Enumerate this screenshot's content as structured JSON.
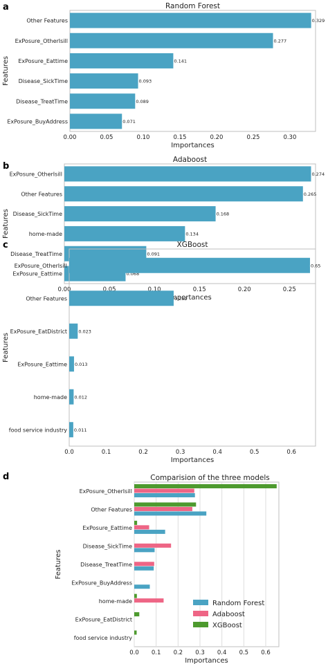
{
  "colors": {
    "random_forest": "#4aa3c3",
    "adaboost": "#ee6585",
    "xgboost": "#4d9a2e",
    "frame": "#bfbfbf",
    "grid": "#dddddd"
  },
  "chart_data": [
    {
      "panel": "a",
      "type": "bar",
      "orientation": "horizontal",
      "title": "Random Forest",
      "xlabel": "Importances",
      "ylabel": "Features",
      "categories": [
        "Other Features",
        "ExPosure_OtherIsill",
        "ExPosure_Eattime",
        "Disease_SickTime",
        "Disease_TreatTime",
        "ExPosure_BuyAddress"
      ],
      "values": [
        0.329,
        0.277,
        0.141,
        0.093,
        0.089,
        0.071
      ],
      "value_labels": [
        "0.329",
        "0.277",
        "0.141",
        "0.093",
        "0.089",
        "0.071"
      ],
      "xticks": [
        "0.00",
        "0.05",
        "0.10",
        "0.15",
        "0.20",
        "0.25",
        "0.30"
      ],
      "xlim": [
        0,
        0.335
      ],
      "grid": false
    },
    {
      "panel": "b",
      "type": "bar",
      "orientation": "horizontal",
      "title": "Adaboost",
      "xlabel": "Importances",
      "ylabel": "Features",
      "categories": [
        "ExPosure_OtherIsill",
        "Other Features",
        "Disease_SickTime",
        "home-made",
        "Disease_TreatTime",
        "ExPosure_Eattime"
      ],
      "values": [
        0.274,
        0.265,
        0.168,
        0.134,
        0.091,
        0.068
      ],
      "value_labels": [
        "0.274",
        "0.265",
        "0.168",
        "0.134",
        "0.091",
        "0.068"
      ],
      "xticks": [
        "0.00",
        "0.05",
        "0.10",
        "0.15",
        "0.20",
        "0.25"
      ],
      "xlim": [
        0,
        0.279
      ],
      "grid": false
    },
    {
      "panel": "c",
      "type": "bar",
      "orientation": "horizontal",
      "title": "XGBoost",
      "xlabel": "Importances",
      "ylabel": "Features",
      "categories": [
        "ExPosure_OtherIsill",
        "Other Features",
        "ExPosure_EatDistrict",
        "ExPosure_Eattime",
        "home-made",
        "food service industry"
      ],
      "values": [
        0.65,
        0.282,
        0.023,
        0.013,
        0.012,
        0.011
      ],
      "value_labels": [
        "0.65",
        "0.282",
        "0.023",
        "0.013",
        "0.012",
        "0.011"
      ],
      "xticks": [
        "0.0",
        "0.1",
        "0.2",
        "0.3",
        "0.4",
        "0.5",
        "0.6"
      ],
      "xlim": [
        0,
        0.665
      ],
      "grid": false
    },
    {
      "panel": "d",
      "type": "bar",
      "orientation": "horizontal",
      "title": "Comparision of the three models",
      "xlabel": "Importances",
      "ylabel": "Features",
      "categories": [
        "ExPosure_OtherIsill",
        "Other Features",
        "ExPosure_Eattime",
        "Disease_SickTime",
        "Disease_TreatTime",
        "ExPosure_BuyAddress",
        "home-made",
        "ExPosure_EatDistrict",
        "food service industry"
      ],
      "series": [
        {
          "name": "XGBoost",
          "values": [
            0.65,
            0.282,
            0.013,
            0,
            0,
            0,
            0.012,
            0.023,
            0.011
          ]
        },
        {
          "name": "Adaboost",
          "values": [
            0.274,
            0.265,
            0.068,
            0.168,
            0.091,
            0,
            0.134,
            0,
            0
          ]
        },
        {
          "name": "Random Forest",
          "values": [
            0.277,
            0.329,
            0.141,
            0.093,
            0.089,
            0.071,
            0,
            0,
            0
          ]
        }
      ],
      "legend_order": [
        "Random Forest",
        "Adaboost",
        "XGBoost"
      ],
      "legend_placement": "lower-right",
      "xticks": [
        "0.0",
        "0.1",
        "0.2",
        "0.3",
        "0.4",
        "0.5",
        "0.6"
      ],
      "xlim": [
        0,
        0.66
      ],
      "grid": true
    }
  ]
}
